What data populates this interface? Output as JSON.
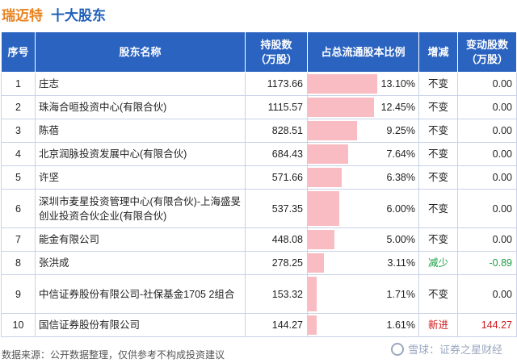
{
  "header": {
    "company": "瑞迈特",
    "section": "十大股东"
  },
  "table": {
    "headers": {
      "index": "序号",
      "name": "股东名称",
      "holding": "持股数\n（万股）",
      "ratio": "占总流通股本比例",
      "change": "增减",
      "change_amount": "变动股数\n（万股）"
    },
    "rows": [
      {
        "index": "1",
        "name": "庄志",
        "holding": "1173.66",
        "ratio_text": "13.10%",
        "ratio": 13.1,
        "change": "不变",
        "change_amount": "0.00"
      },
      {
        "index": "2",
        "name": "珠海合晅投资中心(有限合伙)",
        "holding": "1115.57",
        "ratio_text": "12.45%",
        "ratio": 12.45,
        "change": "不变",
        "change_amount": "0.00"
      },
      {
        "index": "3",
        "name": "陈蓓",
        "holding": "828.51",
        "ratio_text": "9.25%",
        "ratio": 9.25,
        "change": "不变",
        "change_amount": "0.00"
      },
      {
        "index": "4",
        "name": "北京润脉投资发展中心(有限合伙)",
        "holding": "684.43",
        "ratio_text": "7.64%",
        "ratio": 7.64,
        "change": "不变",
        "change_amount": "0.00"
      },
      {
        "index": "5",
        "name": "许坚",
        "holding": "571.66",
        "ratio_text": "6.38%",
        "ratio": 6.38,
        "change": "不变",
        "change_amount": "0.00"
      },
      {
        "index": "6",
        "name": "深圳市麦星投资管理中心(有限合伙)-上海盛旻创业投资合伙企业(有限合伙)",
        "holding": "537.35",
        "ratio_text": "6.00%",
        "ratio": 6.0,
        "change": "不变",
        "change_amount": "0.00"
      },
      {
        "index": "7",
        "name": "能金有限公司",
        "holding": "448.08",
        "ratio_text": "5.00%",
        "ratio": 5.0,
        "change": "不变",
        "change_amount": "0.00"
      },
      {
        "index": "8",
        "name": "张洪成",
        "holding": "278.25",
        "ratio_text": "3.11%",
        "ratio": 3.11,
        "change": "减少",
        "change_amount": "-0.89"
      },
      {
        "index": "9",
        "name": "中信证券股份有限公司-社保基金1705 2组合",
        "holding": "153.32",
        "ratio_text": "1.71%",
        "ratio": 1.71,
        "change": "不变",
        "change_amount": "0.00"
      },
      {
        "index": "10",
        "name": "国信证券股份有限公司",
        "holding": "144.27",
        "ratio_text": "1.61%",
        "ratio": 1.61,
        "change": "新进",
        "change_amount": "144.27"
      }
    ]
  },
  "footer": {
    "source": "数据来源：公开数据整理，仅供参考不构成投资建议",
    "brand": "雪球：证券之星财经"
  },
  "colors": {
    "header_bg": "#2b64c0",
    "ratio_bar": "#f9bcc2",
    "increase": "#d01818",
    "decrease": "#17a040",
    "company": "#e8821e",
    "section": "#1f5fb8"
  }
}
